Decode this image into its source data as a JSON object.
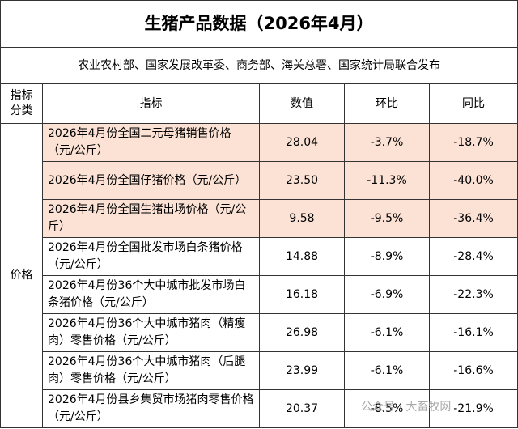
{
  "header": {
    "title": "生猪产品数据（2026年4月）",
    "subtitle": "农业农村部、国家发展改革委、商务部、海关总署、国家统计局联合发布"
  },
  "table": {
    "columns": [
      "指标分类",
      "指标",
      "数值",
      "环比",
      "同比"
    ],
    "category": "价格",
    "rows": [
      [
        "2026年4月份全国二元母猪销售价格（元/公斤）",
        "28.04",
        "-3.7%",
        "-18.7%"
      ],
      [
        "2026年4月份全国仔猪价格（元/公斤）",
        "23.50",
        "-11.3%",
        "-40.0%"
      ],
      [
        "2026年4月份全国生猪出场价格（元/公斤）",
        "9.58",
        "-9.5%",
        "-36.4%"
      ],
      [
        "2026年4月份全国批发市场白条猪价格（元/公斤）",
        "14.88",
        "-8.9%",
        "-28.4%"
      ],
      [
        "2026年4月份36个大中城市批发市场白条猪价格（元/公斤）",
        "16.18",
        "-6.9%",
        "-22.3%"
      ],
      [
        "2026年4月份36个大中城市猪肉（精瘦肉）零售价格（元/公斤）",
        "26.98",
        "-6.1%",
        "-16.1%"
      ],
      [
        "2026年4月份36个大中城市猪肉（后腿肉）零售价格（元/公斤）",
        "23.99",
        "-6.1%",
        "-16.6%"
      ],
      [
        "2026年4月份县乡集贸市场猪肉零售价格（元/公斤）",
        "20.37",
        "-8.5%",
        "-21.9%"
      ]
    ]
  },
  "watermark": "公众号 · 大畜牧网"
}
